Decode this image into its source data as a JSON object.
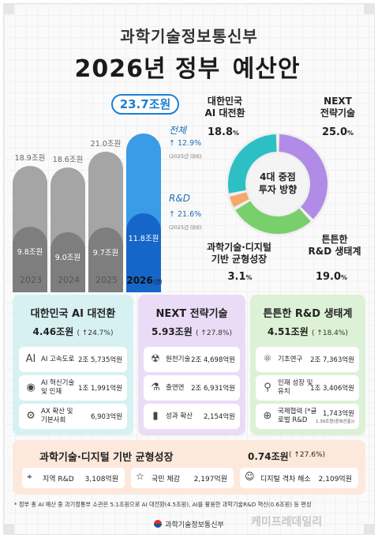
{
  "header": {
    "ministry": "과학기술정보통신부",
    "title_prefix": "2026년 정부 ",
    "title_highlight": "예산안"
  },
  "chart_data": {
    "type": "bar",
    "categories": [
      "2023",
      "2024",
      "2025",
      "2026"
    ],
    "current_suffix": "(안)",
    "series": [
      {
        "name": "전체",
        "values": [
          18.9,
          18.6,
          21.0,
          23.7
        ],
        "labels": [
          "18.9조원",
          "18.6조원",
          "21.0조원",
          "23.7조원"
        ]
      },
      {
        "name": "R&D",
        "values": [
          9.8,
          9.0,
          9.7,
          11.8
        ],
        "labels": [
          "9.8조원",
          "9.0조원",
          "9.7조원",
          "11.8조원"
        ]
      }
    ],
    "total_increase": "12.9%",
    "rd_increase": "21.6%",
    "compare_note": "(2025년 대비)",
    "colors": {
      "past_total": "#a5a5a5",
      "past_rd": "#7e7e7e",
      "cur_total": "#3a9be6",
      "cur_rd": "#1666c9",
      "accent": "#1d7fd1"
    }
  },
  "donut": {
    "center_line1": "4대 중점",
    "center_line2": "투자 방향",
    "segments": [
      {
        "title_line1": "대한민국",
        "title_line2": "AI 대전환",
        "pct": "18.8",
        "value": 18.8,
        "color": "#2dbfc4"
      },
      {
        "title_line1": "NEXT",
        "title_line2": "전략기술",
        "pct": "25.0",
        "value": 25.0,
        "color": "#b08ce6"
      },
      {
        "title_line1": "튼튼한",
        "title_line2": "R&D 생태계",
        "pct": "19.0",
        "value": 19.0,
        "color": "#79cf6b"
      },
      {
        "title_line1": "과학기술·디지털",
        "title_line2": "기반 균형성장",
        "pct": "3.1",
        "value": 3.1,
        "color": "#f6a86b"
      }
    ],
    "pct_unit": "%"
  },
  "cards": [
    {
      "title": "대한민국 AI 대전환",
      "amount": "4.46조원",
      "increase": "( ↑24.7%)",
      "bg": "#d7f1f3",
      "items": [
        {
          "icon": "AI",
          "name": "AI 고속도로",
          "value": "2조 5,735억원"
        },
        {
          "icon": "◉",
          "name": "AI 혁신기술 및 인재",
          "value": "1조 1,991억원"
        },
        {
          "icon": "⚙",
          "name": "AX 확산 및 기본사회",
          "value": "6,903억원"
        }
      ]
    },
    {
      "title": "NEXT 전략기술",
      "amount": "5.93조원",
      "increase": "( ↑27.8%)",
      "bg": "#eadcf6",
      "items": [
        {
          "icon": "☢",
          "name": "원천기술",
          "value": "2조 4,698억원"
        },
        {
          "icon": "⚗",
          "name": "출연연",
          "value": "2조 6,931억원"
        },
        {
          "icon": "▮",
          "name": "성과 확산",
          "value": "2,154억원"
        }
      ]
    },
    {
      "title": "튼튼한 R&D 생태계",
      "amount": "4.51조원",
      "increase": "( ↑18.4%)",
      "bg": "#ddf1d6",
      "items": [
        {
          "icon": "⚛",
          "name": "기초연구",
          "value": "2조 7,363억원"
        },
        {
          "icon": "⚲",
          "name": "인재 성장 및 유치",
          "value": "1조 3,406억원"
        },
        {
          "icon": "⊕",
          "name": "국제협력 (*글로벌 R&D",
          "value": "1,743억원",
          "sub": "1.39조원(중복산출))"
        }
      ]
    }
  ],
  "balance": {
    "title": "과학기술·디지털 기반 균형성장",
    "amount": "0.74조원",
    "increase": "( ↑27.6%)",
    "items": [
      {
        "icon": "⌖",
        "name": "지역 R&D",
        "value": "3,108억원"
      },
      {
        "icon": "☆",
        "name": "국민 체감",
        "value": "2,197억원"
      },
      {
        "icon": "☺",
        "name": "디지털 격차 해소",
        "value": "2,109억원"
      }
    ]
  },
  "footnote": "* 정부 총 AI 예산 중 과기정통부 소관은 5.1조원으로 AI 대전환(4.5조원), AI를 활용한 과학기술R&D 혁신(0.6조원) 등 편성",
  "footer": "과학기술정보통신부",
  "watermark": "케미프레데일리"
}
